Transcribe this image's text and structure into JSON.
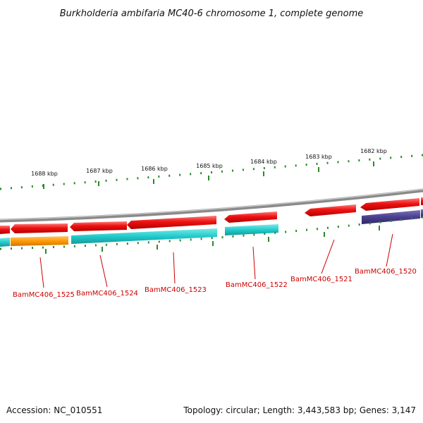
{
  "header": {
    "title": "Burkholderia ambifaria MC40-6 chromosome 1, complete genome"
  },
  "scale": {
    "unit": "kbp",
    "labels": [
      "1688 kbp",
      "1687 kbp",
      "1686 kbp",
      "1685 kbp",
      "1684 kbp",
      "1683 kbp",
      "1682 kbp"
    ]
  },
  "genes": [
    {
      "id": "BamMC406_1525",
      "label": "BamMC406_1525"
    },
    {
      "id": "BamMC406_1524",
      "label": "BamMC406_1524"
    },
    {
      "id": "BamMC406_1523",
      "label": "BamMC406_1523"
    },
    {
      "id": "BamMC406_1522",
      "label": "BamMC406_1522"
    },
    {
      "id": "BamMC406_1521",
      "label": "BamMC406_1521"
    },
    {
      "id": "BamMC406_1520",
      "label": "BamMC406_1520"
    }
  ],
  "colors": {
    "forward_strand": "#ee1111",
    "cog_cyan": "#22cccc",
    "cog_orange": "#ff9900",
    "cog_purple": "#4a3f8f",
    "backbone": "#8a8a8a",
    "ticks": "#2a8a2a",
    "label": "#cc0000"
  },
  "footer": {
    "accession": "Accession: NC_010551",
    "summary": "Topology: circular; Length: 3,443,583 bp; Genes: 3,147"
  }
}
